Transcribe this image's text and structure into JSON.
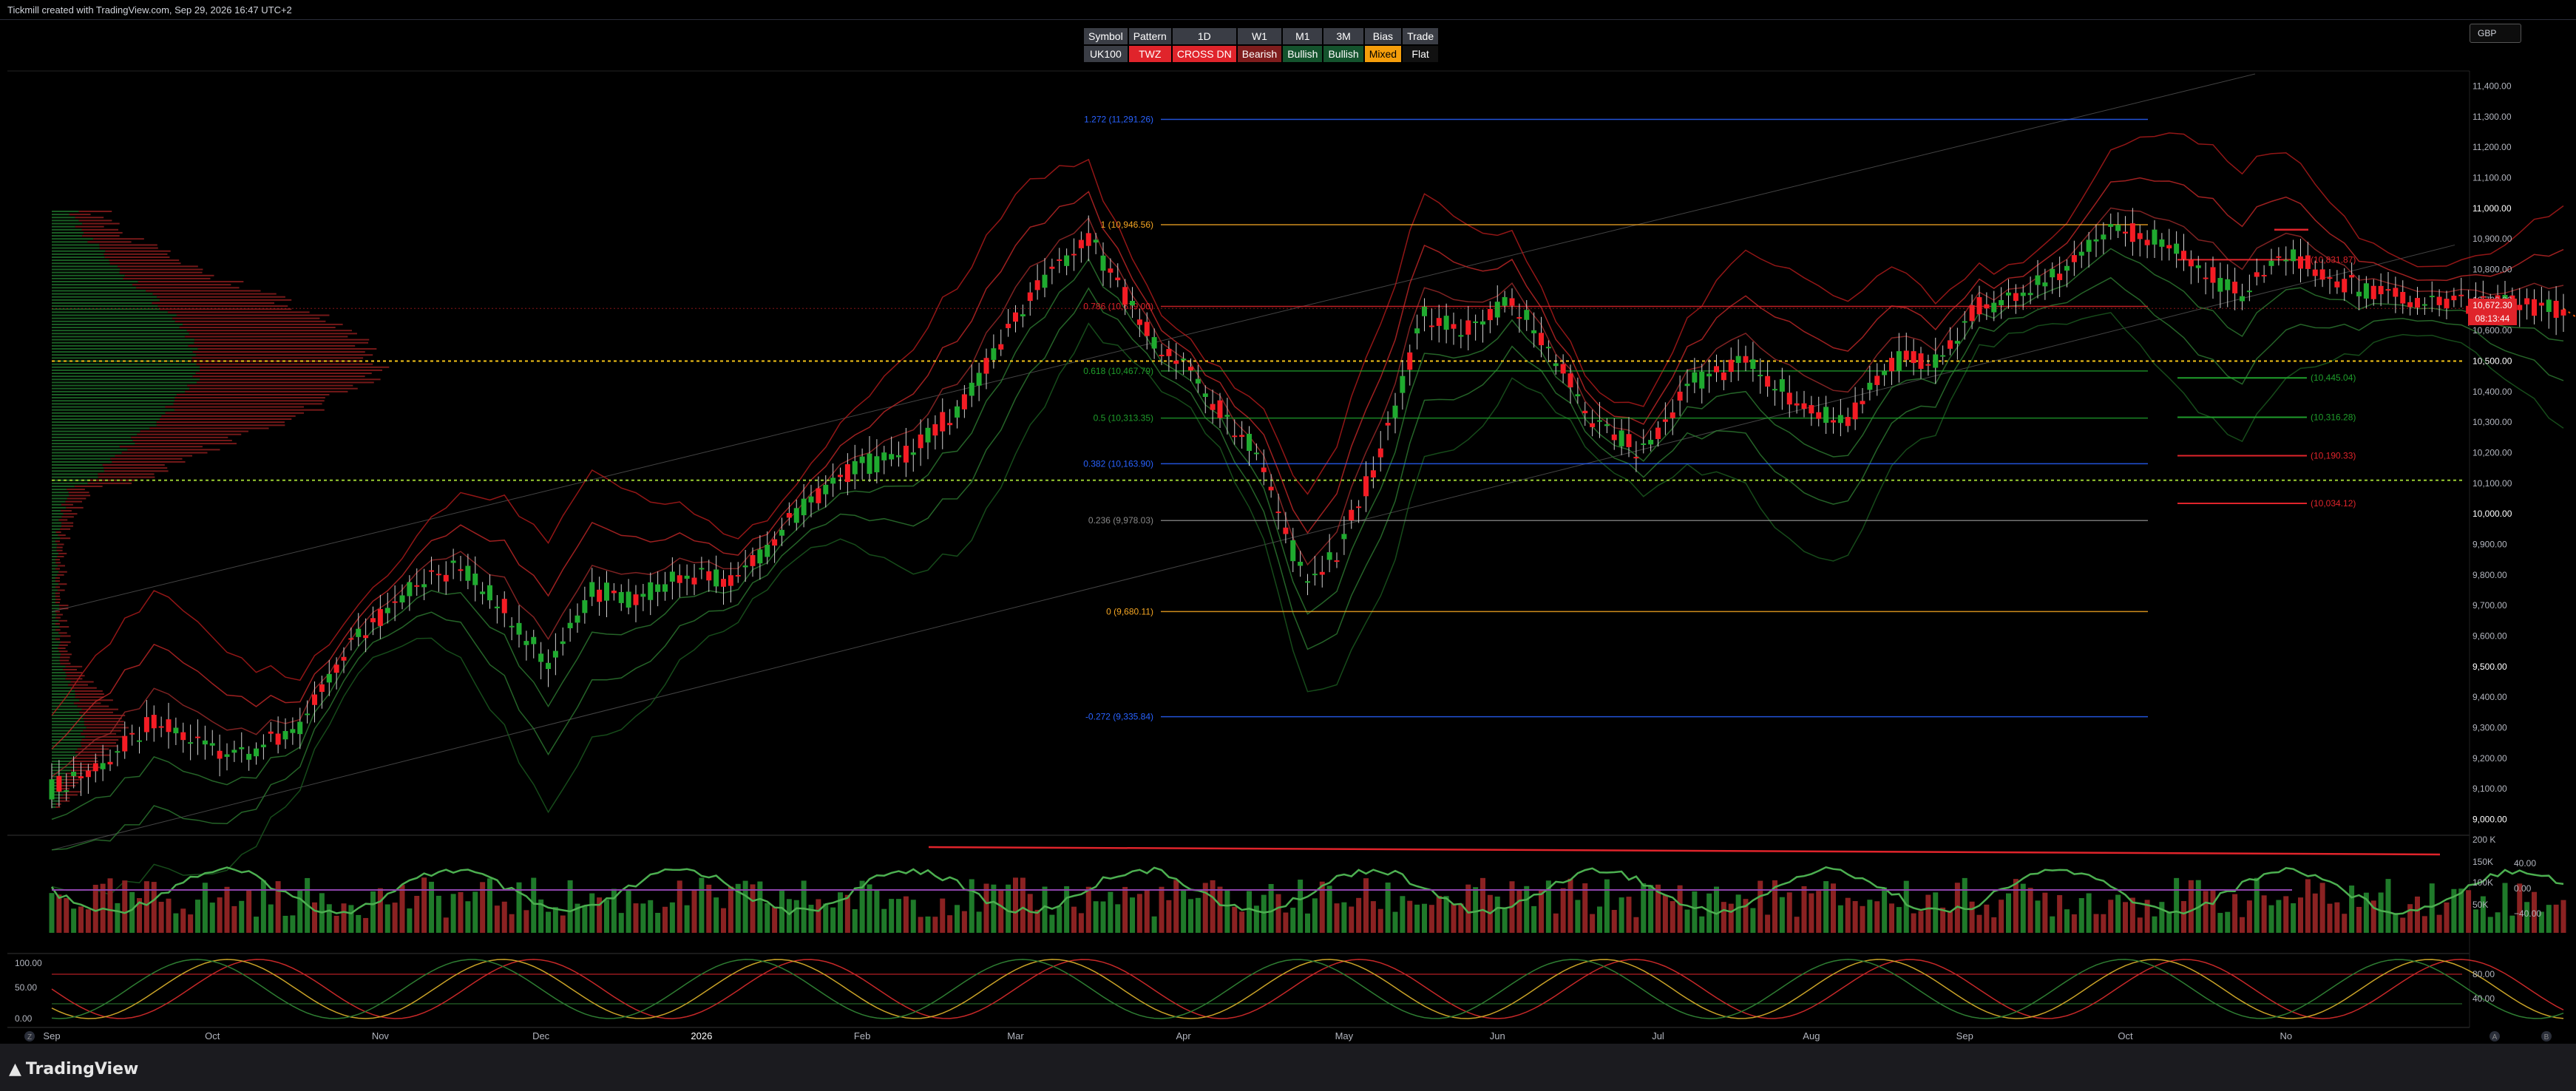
{
  "header": {
    "text": "Tickmill created with TradingView.com, Sep 29, 2026 16:47 UTC+2"
  },
  "currency": "GBP",
  "table": {
    "headers": [
      "Symbol",
      "Pattern",
      "1D",
      "W1",
      "M1",
      "3M",
      "Bias",
      "Trade"
    ],
    "values": [
      "UK100",
      "TWZ",
      "CROSS DN",
      "Bearish",
      "Bullish",
      "Bullish",
      "Mixed",
      "Flat"
    ],
    "colors": [
      "#3a3d45",
      "#e0242b",
      "#e0242b",
      "#7f1d1d",
      "#14532d",
      "#14532d",
      "#f59e0b",
      "#111111"
    ]
  },
  "price_tag": {
    "price": "10,672.30",
    "countdown": "08:13:44"
  },
  "footer": {
    "brand": "TradingView"
  },
  "colors": {
    "up": "#089981",
    "upbar": "#1f9d2b",
    "down": "#f23645",
    "bg": "#000000",
    "fib_orange": "#f5a623",
    "fib_blue": "#2962ff"
  },
  "chart_data": [
    {
      "type": "candlestick",
      "title": "",
      "y_ticks": [
        9000,
        9100,
        9200,
        9300,
        9400,
        9500,
        9600,
        9700,
        9800,
        9900,
        10000,
        10100,
        10200,
        10300,
        10400,
        10500,
        10600,
        10700,
        10800,
        10900,
        11000,
        11100,
        11200,
        11300,
        11400
      ],
      "y_tick_labels": [
        "9,000.00",
        "9,100.00",
        "9,200.00",
        "9,300.00",
        "9,400.00",
        "9,500.00",
        "9,600.00",
        "9,700.00",
        "9,800.00",
        "9,900.00",
        "10,000.00",
        "10,100.00",
        "10,200.00",
        "10,300.00",
        "10,400.00",
        "10,500.00",
        "10,600.00",
        "10,700.00",
        "10,800.00",
        "10,900.00",
        "11,000.00",
        "11,100.00",
        "11,200.00",
        "11,300.00",
        "11,400.00"
      ],
      "ylim": [
        8960,
        11440
      ],
      "x_labels": [
        "Sep",
        "Oct",
        "Nov",
        "Dec",
        "2026",
        "Feb",
        "Mar",
        "Apr",
        "May",
        "Jun",
        "Jul",
        "Aug",
        "Sep",
        "Oct",
        "No"
      ],
      "x_label_index": [
        0,
        22,
        45,
        67,
        89,
        111,
        132,
        155,
        177,
        198,
        220,
        241,
        262,
        284,
        306
      ],
      "bars": 284,
      "price_path": [
        [
          0,
          9100
        ],
        [
          8,
          9200
        ],
        [
          14,
          9320
        ],
        [
          22,
          9230
        ],
        [
          28,
          9230
        ],
        [
          34,
          9300
        ],
        [
          42,
          9600
        ],
        [
          50,
          9780
        ],
        [
          56,
          9820
        ],
        [
          62,
          9700
        ],
        [
          68,
          9500
        ],
        [
          74,
          9750
        ],
        [
          80,
          9720
        ],
        [
          86,
          9800
        ],
        [
          94,
          9780
        ],
        [
          102,
          10000
        ],
        [
          110,
          10150
        ],
        [
          118,
          10200
        ],
        [
          126,
          10400
        ],
        [
          134,
          10720
        ],
        [
          142,
          10900
        ],
        [
          150,
          10600
        ],
        [
          158,
          10400
        ],
        [
          165,
          10200
        ],
        [
          172,
          9750
        ],
        [
          176,
          9870
        ],
        [
          182,
          10200
        ],
        [
          188,
          10650
        ],
        [
          194,
          10600
        ],
        [
          200,
          10700
        ],
        [
          206,
          10500
        ],
        [
          212,
          10280
        ],
        [
          218,
          10200
        ],
        [
          224,
          10420
        ],
        [
          232,
          10500
        ],
        [
          240,
          10350
        ],
        [
          246,
          10300
        ],
        [
          252,
          10500
        ],
        [
          258,
          10500
        ],
        [
          264,
          10680
        ],
        [
          270,
          10720
        ],
        [
          276,
          10800
        ],
        [
          282,
          10950
        ],
        [
          288,
          10900
        ],
        [
          294,
          10800
        ],
        [
          300,
          10720
        ],
        [
          306,
          10850
        ],
        [
          312,
          10780
        ],
        [
          318,
          10720
        ],
        [
          324,
          10700
        ],
        [
          330,
          10690
        ],
        [
          338,
          10680
        ],
        [
          344,
          10672
        ]
      ],
      "fib_levels": [
        {
          "ratio": "1.272",
          "value": 11291.26,
          "label": "1.272 (11,291.26)",
          "color": "#2962ff"
        },
        {
          "ratio": "1",
          "value": 10946.56,
          "label": "1 (10,946.56)",
          "color": "#f5a623"
        },
        {
          "ratio": "0.786",
          "value": 10679.0,
          "label": "0.786 (10,679.00)",
          "color": "#e0242b"
        },
        {
          "ratio": "0.618",
          "value": 10467.79,
          "label": "0.618 (10,467.79)",
          "color": "#1f9d2b"
        },
        {
          "ratio": "0.5",
          "value": 10313.35,
          "label": "0.5 (10,313.35)",
          "color": "#1f9d2b"
        },
        {
          "ratio": "0.382",
          "value": 10163.9,
          "label": "0.382 (10,163.90)",
          "color": "#2962ff"
        },
        {
          "ratio": "0.236",
          "value": 9978.03,
          "label": "0.236 (9,978.03)",
          "color": "#888888"
        },
        {
          "ratio": "0",
          "value": 9680.11,
          "label": "0 (9,680.11)",
          "color": "#f5a623"
        },
        {
          "ratio": "-0.272",
          "value": 9335.84,
          "label": "-0.272 (9,335.84)",
          "color": "#2962ff"
        }
      ],
      "right_levels": [
        {
          "value": 10831.87,
          "label": "(10,831.87)",
          "color": "#e0242b"
        },
        {
          "value": 10445.04,
          "label": "(10,445.04)",
          "color": "#1f9d2b"
        },
        {
          "value": 10316.28,
          "label": "(10,316.28)",
          "color": "#1f9d2b"
        },
        {
          "value": 10190.33,
          "label": "(10,190.33)",
          "color": "#e0242b"
        },
        {
          "value": 10034.12,
          "label": "(10,034.12)",
          "color": "#e0242b"
        }
      ],
      "hlines": [
        {
          "value": 10500,
          "color": "#f5c518"
        },
        {
          "value": 10110,
          "color": "#9acd32"
        }
      ],
      "current_price": 10672.3
    },
    {
      "type": "bar",
      "title": "volume",
      "y_tick_labels": [
        "200 K",
        "150K",
        "100K",
        "50K"
      ],
      "osc_tick_labels": [
        "40.00",
        "0.00",
        "−40.00"
      ]
    },
    {
      "type": "line",
      "title": "stochastic",
      "y_tick_labels_left": [
        "100.00",
        "50.00",
        "0.00"
      ],
      "y_tick_labels_right": [
        "80.00",
        "40.00"
      ]
    }
  ],
  "bottom_buttons": {
    "left": "Z",
    "right1": "A",
    "right2": "B"
  }
}
